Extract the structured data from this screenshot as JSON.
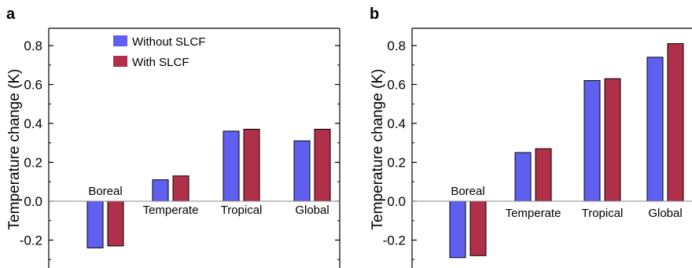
{
  "colors": {
    "without": "#6060f0",
    "with": "#b0304a"
  },
  "chart_data": [
    {
      "panel_label": "a",
      "type": "bar",
      "categories": [
        "Boreal",
        "Temperate",
        "Tropical",
        "Global"
      ],
      "series": [
        {
          "name": "Without SLCF",
          "values": [
            -0.24,
            0.11,
            0.36,
            0.31
          ]
        },
        {
          "name": "With SLCF",
          "values": [
            -0.23,
            0.13,
            0.37,
            0.37
          ]
        }
      ],
      "ylabel": "Temperature change (K)",
      "ylim": [
        -0.35,
        0.9
      ],
      "yticks": [
        -0.2,
        0.0,
        0.2,
        0.4,
        0.6,
        0.8
      ],
      "ytick_labels": [
        "-0.2",
        "0.0",
        "0.2",
        "0.4",
        "0.6",
        "0.8"
      ],
      "legend_position": "top-left"
    },
    {
      "panel_label": "b",
      "type": "bar",
      "categories": [
        "Boreal",
        "Temperate",
        "Tropical",
        "Global"
      ],
      "series": [
        {
          "name": "Without SLCF",
          "values": [
            -0.29,
            0.25,
            0.62,
            0.74
          ]
        },
        {
          "name": "With SLCF",
          "values": [
            -0.28,
            0.27,
            0.63,
            0.81
          ]
        }
      ],
      "ylabel": "Temperature change (K)",
      "ylim": [
        -0.35,
        0.9
      ],
      "yticks": [
        -0.2,
        0.0,
        0.2,
        0.4,
        0.6,
        0.8
      ],
      "ytick_labels": [
        "-0.2",
        "0.0",
        "0.2",
        "0.4",
        "0.6",
        "0.8"
      ]
    }
  ]
}
